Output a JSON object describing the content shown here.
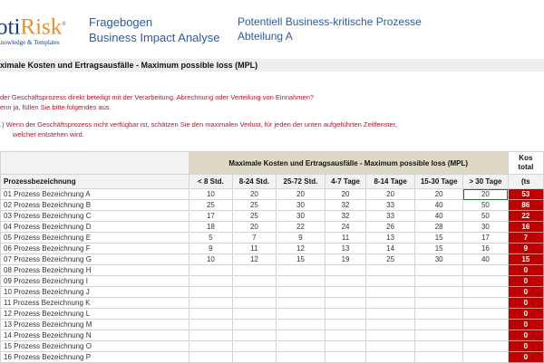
{
  "logo": {
    "brand_a": "oti",
    "brand_b": "Risk",
    "mark": "®",
    "tagline": "Knowledge & Templates"
  },
  "header": {
    "title1": "Fragebogen",
    "title2": "Business Impact Analyse",
    "title3": "Potentiell Business-kritische Prozesse",
    "title4": "Abteilung A"
  },
  "section_title": "ximale Kosten und Ertragsausfälle - Maximum possible loss (MPL)",
  "questions": {
    "q1": "der Geschäftsprozess direkt beteiligt mit der Verarbeitung, Abrechnung oder Verteilung von Einnahmen?",
    "q1b": "enn ja, füllen Sie bitte folgendes aus:",
    "q2": ".)   Wenn der Geschäftsprozess nicht verfügbar ist, schätzen Sie den maximalen Verlust, für jeden der unten aufgeführten Zeitfenster,",
    "q2b": "welcher entstehen wird."
  },
  "table": {
    "group_header": "Maximale Kosten und Ertragsausfälle - Maximum possible loss (MPL)",
    "total_header1": "Kos",
    "total_header2": "total",
    "total_unit": "(ts",
    "name_header": "Prozessbezeichnung",
    "columns": [
      "< 8 Std.",
      "8-24 Std.",
      "25-72 Std.",
      "4-7 Tage",
      "8-14 Tage",
      "15-30 Tage",
      "> 30 Tage"
    ],
    "rows": [
      {
        "name": "01 Prozess Bezeichnung A",
        "values": [
          "10",
          "20",
          "20",
          "20",
          "20",
          "20",
          "20"
        ],
        "total": "53"
      },
      {
        "name": "02 Prozess Bezeichnung B",
        "values": [
          "25",
          "25",
          "30",
          "32",
          "33",
          "40",
          "50"
        ],
        "total": "86"
      },
      {
        "name": "03 Prozess Bezeichnung C",
        "values": [
          "17",
          "25",
          "30",
          "32",
          "33",
          "40",
          "50"
        ],
        "total": "22"
      },
      {
        "name": "04 Prozess Bezeichnung D",
        "values": [
          "18",
          "20",
          "22",
          "24",
          "26",
          "28",
          "30"
        ],
        "total": "16"
      },
      {
        "name": "05 Prozess Bezeichnung E",
        "values": [
          "5",
          "7",
          "9",
          "11",
          "13",
          "15",
          "17"
        ],
        "total": "7"
      },
      {
        "name": "06 Prozess Bezeichnung F",
        "values": [
          "9",
          "11",
          "12",
          "13",
          "14",
          "15",
          "16"
        ],
        "total": "9"
      },
      {
        "name": "07 Prozess Bezeichnung G",
        "values": [
          "10",
          "12",
          "15",
          "19",
          "25",
          "30",
          "40"
        ],
        "total": "15"
      },
      {
        "name": "08 Prozess Bezeichnung H",
        "values": [
          "",
          "",
          "",
          "",
          "",
          "",
          ""
        ],
        "total": "0"
      },
      {
        "name": "09 Prozess Bezeichnung I",
        "values": [
          "",
          "",
          "",
          "",
          "",
          "",
          ""
        ],
        "total": "0"
      },
      {
        "name": "10 Prozess Bezeichnung J",
        "values": [
          "",
          "",
          "",
          "",
          "",
          "",
          ""
        ],
        "total": "0"
      },
      {
        "name": "11 Prozess Bezeichnung K",
        "values": [
          "",
          "",
          "",
          "",
          "",
          "",
          ""
        ],
        "total": "0"
      },
      {
        "name": "12 Prozess Bezeichnung L",
        "values": [
          "",
          "",
          "",
          "",
          "",
          "",
          ""
        ],
        "total": "0"
      },
      {
        "name": "13 Prozess Bezeichnung M",
        "values": [
          "",
          "",
          "",
          "",
          "",
          "",
          ""
        ],
        "total": "0"
      },
      {
        "name": "14 Prozess Bezeichnung N",
        "values": [
          "",
          "",
          "",
          "",
          "",
          "",
          ""
        ],
        "total": "0"
      },
      {
        "name": "15 Prozess Bezeichnung O",
        "values": [
          "",
          "",
          "",
          "",
          "",
          "",
          ""
        ],
        "total": "0"
      },
      {
        "name": "16 Prozess Bezeichnung P",
        "values": [
          "",
          "",
          "",
          "",
          "",
          "",
          ""
        ],
        "total": "0"
      }
    ]
  },
  "colors": {
    "header_blue": "#2d5aa0",
    "question_red": "#b0182a",
    "total_red": "#c00000",
    "group_header_bg": "#ddd9c4"
  }
}
